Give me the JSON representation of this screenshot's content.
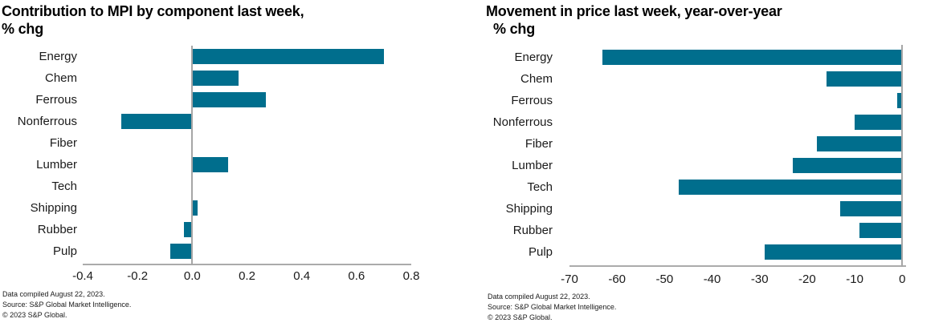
{
  "colors": {
    "background": "#FFFFFF",
    "bar": "#006E8D",
    "axis_line": "#ABABAB",
    "zero_line": "#A6A6A6",
    "title_text": "#000000",
    "label_text": "#1A1A1A"
  },
  "footer": {
    "line1": "Data compiled August 22, 2023.",
    "line2": "Source: S&P Global Market Intelligence.",
    "line3": "© 2023 S&P Global."
  },
  "chart_data": [
    {
      "type": "bar",
      "orientation": "horizontal",
      "title": "Contribution to MPI by component last week, % chg",
      "title_lines": [
        "Contribution to MPI by component last week,",
        "% chg"
      ],
      "categories": [
        "Energy",
        "Chem",
        "Ferrous",
        "Nonferrous",
        "Fiber",
        "Lumber",
        "Tech",
        "Shipping",
        "Rubber",
        "Pulp"
      ],
      "values": [
        0.7,
        0.17,
        0.27,
        -0.26,
        -0.005,
        0.13,
        -0.005,
        0.02,
        -0.03,
        -0.08
      ],
      "xlabel": "",
      "ylabel": "",
      "xlim": [
        -0.4,
        0.8
      ],
      "xticks": [
        -0.4,
        -0.2,
        0,
        0.2,
        0.4,
        0.6,
        0.8
      ],
      "xtick_labels": [
        "-0.4",
        "-0.2",
        "0.0",
        "0.2",
        "0.4",
        "0.6",
        "0.8"
      ],
      "grid": false,
      "legend": false,
      "bar_color": "#006E8D"
    },
    {
      "type": "bar",
      "orientation": "horizontal",
      "title": "Movement in price last week, year-over-year % chg",
      "title_lines": [
        "Movement in price last week, year-over-year",
        "% chg"
      ],
      "categories": [
        "Energy",
        "Chem",
        "Ferrous",
        "Nonferrous",
        "Fiber",
        "Lumber",
        "Tech",
        "Shipping",
        "Rubber",
        "Pulp"
      ],
      "values": [
        -63,
        -16,
        -1,
        -10,
        -18,
        -23,
        -47,
        -13,
        -9,
        -29
      ],
      "xlabel": "",
      "ylabel": "",
      "xlim": [
        -70,
        0.8
      ],
      "xticks": [
        -70,
        -60,
        -50,
        -40,
        -30,
        -20,
        -10,
        0
      ],
      "xtick_labels": [
        "-70",
        "-60",
        "-50",
        "-40",
        "-30",
        "-20",
        "-10",
        "0"
      ],
      "grid": false,
      "legend": false,
      "bar_color": "#006E8D"
    }
  ]
}
